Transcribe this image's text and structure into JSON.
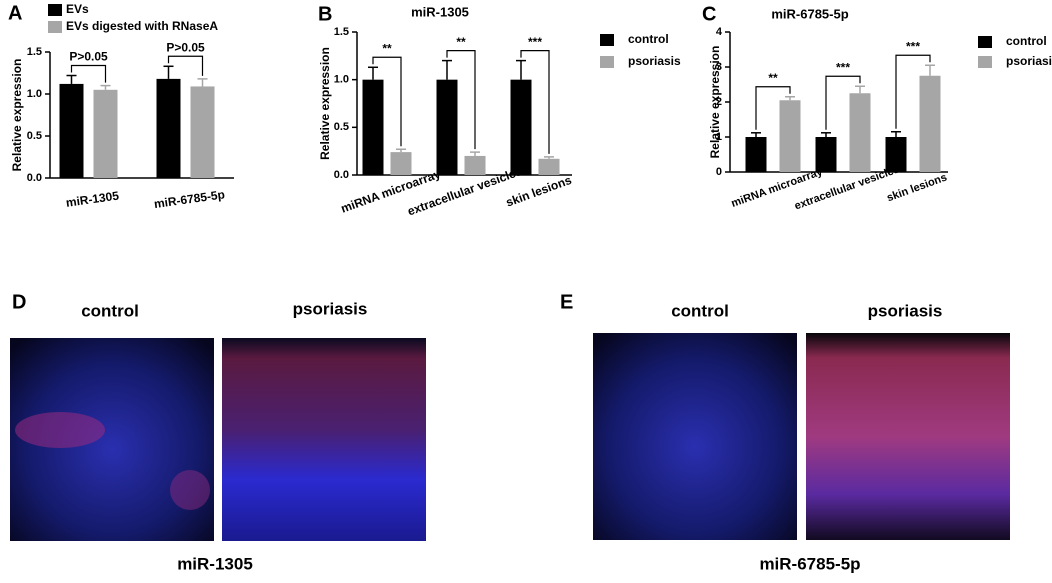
{
  "chart_data": [
    {
      "type": "bar",
      "panel": "A",
      "ylabel": "Relative expression",
      "categories": [
        "miR-1305",
        "miR-6785-5p"
      ],
      "series": [
        {
          "name": "EVs",
          "color": "#000000",
          "values": [
            1.12,
            1.18
          ],
          "errors": [
            0.1,
            0.15
          ]
        },
        {
          "name": "EVs digested with RNaseA",
          "color": "#a6a6a6",
          "values": [
            1.05,
            1.09
          ],
          "errors": [
            0.05,
            0.09
          ]
        }
      ],
      "annotations": [
        "P>0.05",
        "P>0.05"
      ],
      "ylim": [
        0,
        1.5
      ],
      "yticks": [
        {
          "value": 0,
          "label": "0.0"
        },
        0.5,
        {
          "value": 1,
          "label": "1.0"
        },
        1.5
      ]
    },
    {
      "type": "bar",
      "panel": "B",
      "title": "miR-1305",
      "ylabel": "Relative expression",
      "categories": [
        "miRNA microarray",
        "extracellular vesicles",
        "skin lesions"
      ],
      "series": [
        {
          "name": "control",
          "color": "#000000",
          "values": [
            1.0,
            1.0,
            1.0
          ],
          "errors": [
            0.13,
            0.2,
            0.2
          ]
        },
        {
          "name": "psoriasis",
          "color": "#a6a6a6",
          "values": [
            0.24,
            0.2,
            0.17
          ],
          "errors": [
            0.03,
            0.04,
            0.02
          ]
        }
      ],
      "annotations": [
        "**",
        "**",
        "***"
      ],
      "ylim": [
        0,
        1.5
      ],
      "yticks": [
        {
          "value": 0,
          "label": "0.0"
        },
        0.5,
        {
          "value": 1,
          "label": "1.0"
        },
        1.5
      ]
    },
    {
      "type": "bar",
      "panel": "C",
      "title": "miR-6785-5p",
      "ylabel": "Relative expression",
      "categories": [
        "miRNA microarray",
        "extracellular vesicles",
        "skin lesions"
      ],
      "series": [
        {
          "name": "control",
          "color": "#000000",
          "values": [
            1.0,
            1.0,
            1.0
          ],
          "errors": [
            0.12,
            0.12,
            0.15
          ]
        },
        {
          "name": "psoriasis",
          "color": "#a6a6a6",
          "values": [
            2.05,
            2.25,
            2.75
          ],
          "errors": [
            0.1,
            0.2,
            0.3
          ]
        }
      ],
      "annotations": [
        "**",
        "***",
        "***"
      ],
      "ylim": [
        0,
        4
      ],
      "yticks": [
        0,
        1,
        2,
        3,
        4
      ]
    }
  ],
  "images": {
    "panel_d": {
      "panel": "D",
      "labels": [
        "control",
        "psoriasis"
      ],
      "caption": "miR-1305"
    },
    "panel_e": {
      "panel": "E",
      "labels": [
        "control",
        "psoriasis"
      ],
      "caption": "miR-6785-5p"
    }
  }
}
